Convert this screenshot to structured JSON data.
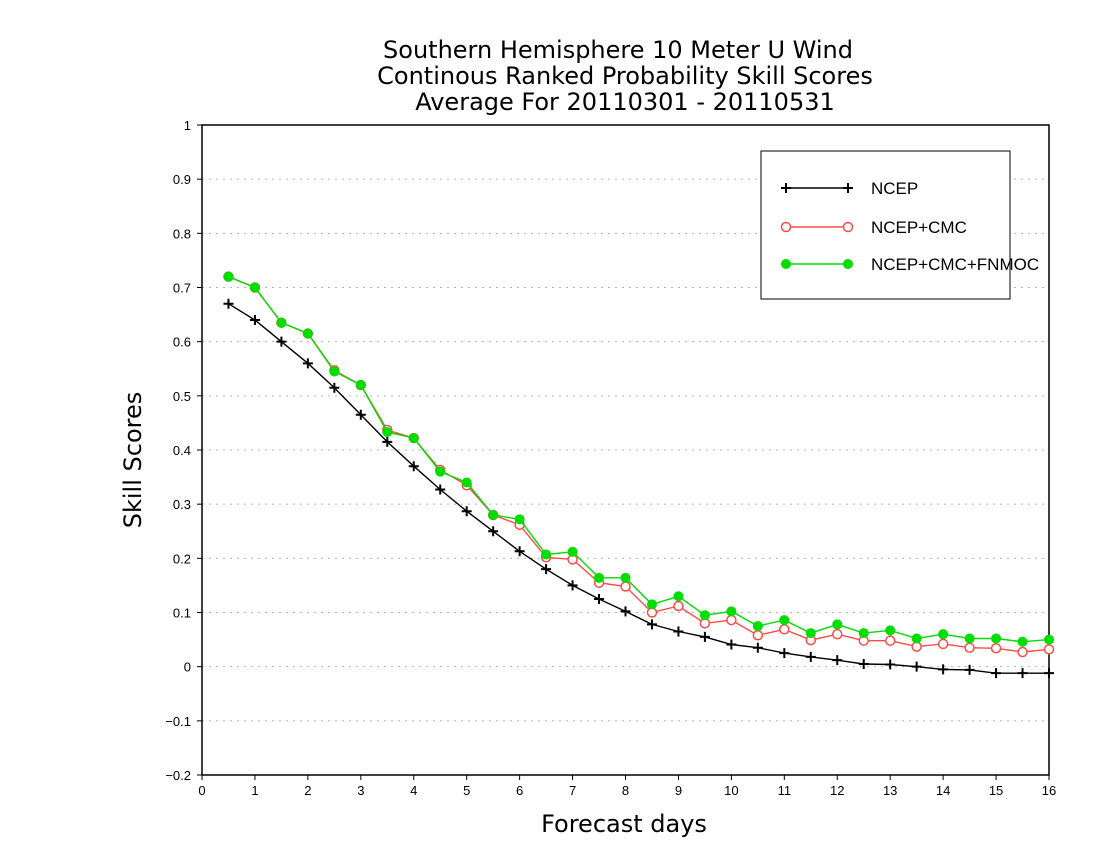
{
  "chart_data": {
    "type": "line",
    "title": [
      "Southern Hemisphere 10 Meter U Wind",
      "Continous Ranked Probability Skill Scores",
      "Average For 20110301 - 20110531"
    ],
    "xlabel": "Forecast days",
    "ylabel": "Skill Scores",
    "xlim": [
      0,
      16
    ],
    "ylim": [
      -0.2,
      1
    ],
    "xticks": [
      0,
      1,
      2,
      3,
      4,
      5,
      6,
      7,
      8,
      9,
      10,
      11,
      12,
      13,
      14,
      15,
      16
    ],
    "yticks": [
      -0.2,
      -0.1,
      0,
      0.1,
      0.2,
      0.3,
      0.4,
      0.5,
      0.6,
      0.7,
      0.8,
      0.9,
      1
    ],
    "ytick_labels": [
      "−0.2",
      "−0.1",
      "0",
      "0.1",
      "0.2",
      "0.3",
      "0.4",
      "0.5",
      "0.6",
      "0.7",
      "0.8",
      "0.9",
      "1"
    ],
    "grid": "horizontal dotted",
    "legend_position": "top-right",
    "x": [
      0.5,
      1,
      1.5,
      2,
      2.5,
      3,
      3.5,
      4,
      4.5,
      5,
      5.5,
      6,
      6.5,
      7,
      7.5,
      8,
      8.5,
      9,
      9.5,
      10,
      10.5,
      11,
      11.5,
      12,
      12.5,
      13,
      13.5,
      14,
      14.5,
      15,
      15.5,
      16
    ],
    "series": [
      {
        "name": "NCEP",
        "color": "#000000",
        "marker": "plus",
        "values": [
          0.67,
          0.64,
          0.6,
          0.56,
          0.515,
          0.465,
          0.415,
          0.37,
          0.327,
          0.287,
          0.25,
          0.213,
          0.18,
          0.15,
          0.125,
          0.102,
          0.078,
          0.065,
          0.055,
          0.041,
          0.035,
          0.025,
          0.018,
          0.012,
          0.005,
          0.004,
          0.0,
          -0.005,
          -0.006,
          -0.012,
          -0.012,
          -0.012
        ]
      },
      {
        "name": "NCEP+CMC",
        "color": "#ff4a4a",
        "marker": "open-circle",
        "values": [
          0.72,
          0.7,
          0.635,
          0.615,
          0.547,
          0.52,
          0.437,
          0.422,
          0.363,
          0.335,
          0.28,
          0.262,
          0.202,
          0.198,
          0.155,
          0.148,
          0.1,
          0.112,
          0.08,
          0.086,
          0.058,
          0.069,
          0.049,
          0.06,
          0.048,
          0.048,
          0.037,
          0.042,
          0.035,
          0.034,
          0.027,
          0.032
        ]
      },
      {
        "name": "NCEP+CMC+FNMOC",
        "color": "#00dd00",
        "marker": "filled-circle",
        "values": [
          0.72,
          0.7,
          0.635,
          0.615,
          0.545,
          0.52,
          0.433,
          0.422,
          0.36,
          0.34,
          0.28,
          0.272,
          0.207,
          0.212,
          0.164,
          0.164,
          0.115,
          0.13,
          0.095,
          0.102,
          0.075,
          0.086,
          0.062,
          0.078,
          0.062,
          0.067,
          0.052,
          0.06,
          0.052,
          0.052,
          0.046,
          0.05
        ]
      }
    ]
  }
}
